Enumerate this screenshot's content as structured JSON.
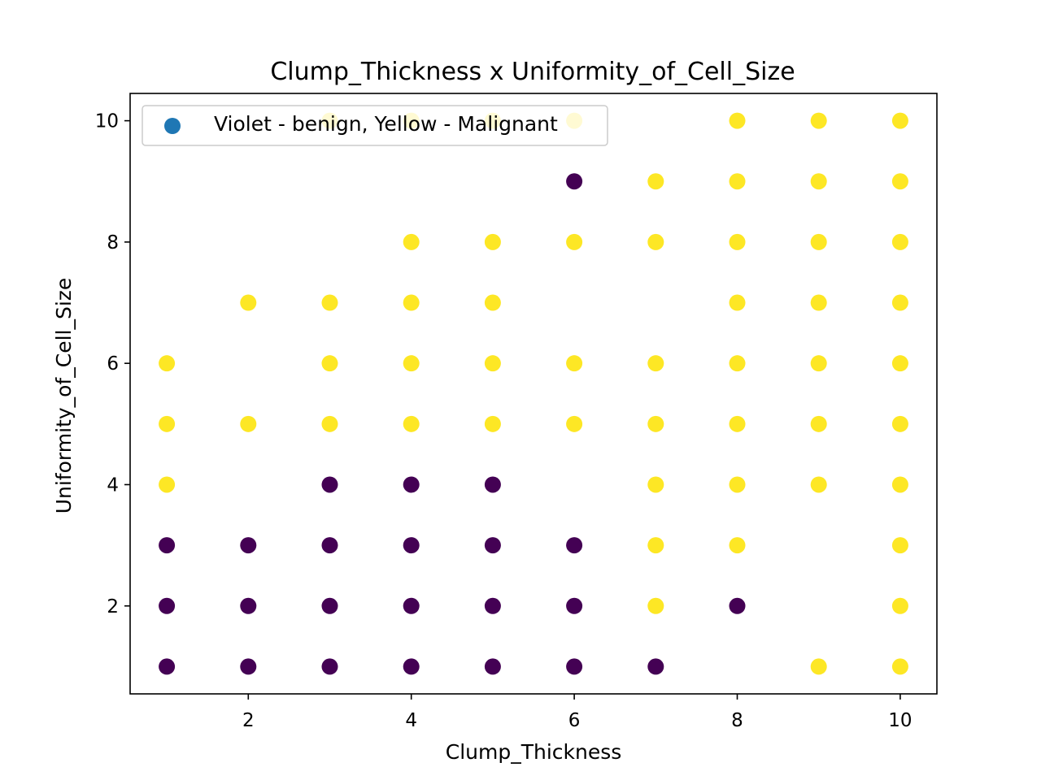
{
  "chart_data": {
    "type": "scatter",
    "title": "Clump_Thickness x Uniformity_of_Cell_Size",
    "xlabel": "Clump_Thickness",
    "ylabel": "Uniformity_of_Cell_Size",
    "xlim": [
      0.55,
      10.45
    ],
    "ylim": [
      0.55,
      10.45
    ],
    "xticks": [
      2,
      4,
      6,
      8,
      10
    ],
    "yticks": [
      2,
      4,
      6,
      8,
      10
    ],
    "grid": false,
    "legend": {
      "placement": "top-left",
      "label": "Violet - benign, Yellow - Malignant",
      "marker_color": "#1f77b4"
    },
    "colors": {
      "benign": "#440154",
      "malignant": "#fde725"
    },
    "series": [
      {
        "class": "benign",
        "points": [
          [
            1,
            1
          ],
          [
            1,
            2
          ],
          [
            1,
            3
          ],
          [
            2,
            1
          ],
          [
            2,
            2
          ],
          [
            2,
            3
          ],
          [
            3,
            1
          ],
          [
            3,
            2
          ],
          [
            3,
            3
          ],
          [
            3,
            4
          ],
          [
            4,
            1
          ],
          [
            4,
            2
          ],
          [
            4,
            3
          ],
          [
            4,
            4
          ],
          [
            5,
            1
          ],
          [
            5,
            2
          ],
          [
            5,
            3
          ],
          [
            5,
            4
          ],
          [
            6,
            1
          ],
          [
            6,
            2
          ],
          [
            6,
            3
          ],
          [
            6,
            9
          ],
          [
            7,
            1
          ],
          [
            8,
            2
          ]
        ]
      },
      {
        "class": "malignant",
        "points": [
          [
            1,
            4
          ],
          [
            1,
            5
          ],
          [
            1,
            6
          ],
          [
            2,
            5
          ],
          [
            2,
            7
          ],
          [
            3,
            5
          ],
          [
            3,
            6
          ],
          [
            3,
            7
          ],
          [
            3,
            10
          ],
          [
            4,
            5
          ],
          [
            4,
            6
          ],
          [
            4,
            7
          ],
          [
            4,
            8
          ],
          [
            4,
            10
          ],
          [
            5,
            5
          ],
          [
            5,
            6
          ],
          [
            5,
            7
          ],
          [
            5,
            8
          ],
          [
            5,
            10
          ],
          [
            6,
            5
          ],
          [
            6,
            6
          ],
          [
            6,
            8
          ],
          [
            6,
            10
          ],
          [
            7,
            2
          ],
          [
            7,
            3
          ],
          [
            7,
            4
          ],
          [
            7,
            5
          ],
          [
            7,
            6
          ],
          [
            7,
            8
          ],
          [
            7,
            9
          ],
          [
            8,
            3
          ],
          [
            8,
            4
          ],
          [
            8,
            5
          ],
          [
            8,
            6
          ],
          [
            8,
            7
          ],
          [
            8,
            8
          ],
          [
            8,
            9
          ],
          [
            8,
            10
          ],
          [
            9,
            1
          ],
          [
            9,
            4
          ],
          [
            9,
            5
          ],
          [
            9,
            6
          ],
          [
            9,
            7
          ],
          [
            9,
            8
          ],
          [
            9,
            9
          ],
          [
            9,
            10
          ],
          [
            10,
            1
          ],
          [
            10,
            2
          ],
          [
            10,
            3
          ],
          [
            10,
            4
          ],
          [
            10,
            5
          ],
          [
            10,
            6
          ],
          [
            10,
            7
          ],
          [
            10,
            8
          ],
          [
            10,
            9
          ],
          [
            10,
            10
          ]
        ]
      }
    ]
  }
}
